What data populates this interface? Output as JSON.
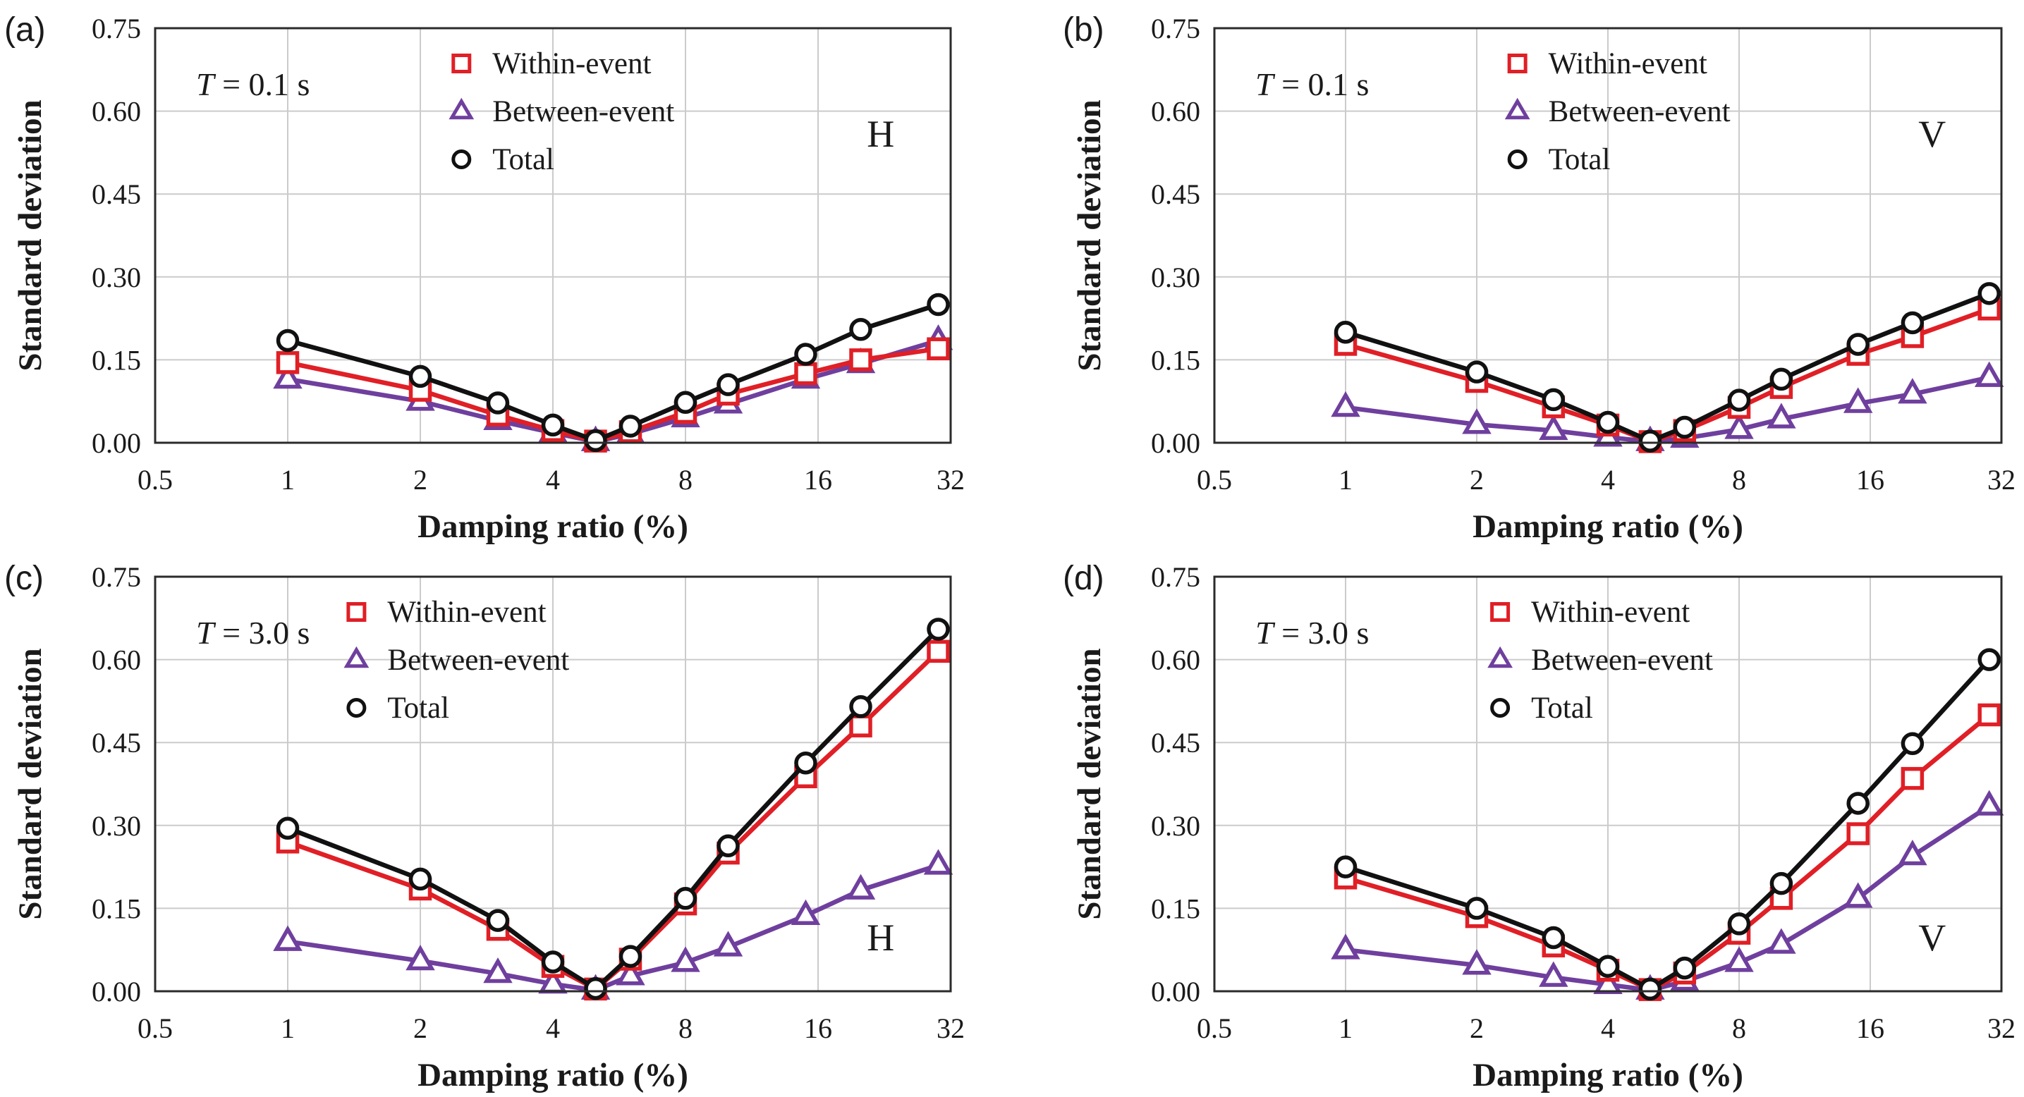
{
  "figure": {
    "background": "#ffffff",
    "grid_color": "#cbcbcb",
    "border_color": "#2b2b2b",
    "text_color": "#1a1a1a"
  },
  "chart_data": [
    {
      "type": "line",
      "panel_label": "(a)",
      "annotation": "T = 0.1 s",
      "corner_label": "H",
      "corner_position": "top-right",
      "xlabel": "Damping ratio (%)",
      "ylabel": "Standard deviation",
      "x_scale": "log2",
      "xlim": [
        0.5,
        32
      ],
      "ylim": [
        0,
        0.75
      ],
      "x_ticks": [
        0.5,
        1,
        2,
        4,
        8,
        16,
        32
      ],
      "y_ticks": [
        0,
        0.15,
        0.3,
        0.45,
        0.6,
        0.75
      ],
      "grid": true,
      "legend_position": "inside-top",
      "legend_x_frac": 0.385,
      "x": [
        1,
        2,
        3,
        4,
        5,
        6,
        8,
        10,
        15,
        20,
        30
      ],
      "series": [
        {
          "name": "Within-event",
          "marker": "square",
          "color": "#e01f26",
          "values": [
            0.145,
            0.095,
            0.05,
            0.022,
            0.003,
            0.02,
            0.055,
            0.088,
            0.125,
            0.15,
            0.17
          ]
        },
        {
          "name": "Between-event",
          "marker": "triangle",
          "color": "#6f3f9e",
          "values": [
            0.115,
            0.075,
            0.04,
            0.018,
            0.002,
            0.016,
            0.045,
            0.07,
            0.115,
            0.143,
            0.185
          ]
        },
        {
          "name": "Total",
          "marker": "circle",
          "color": "#111111",
          "values": [
            0.185,
            0.12,
            0.072,
            0.032,
            0.004,
            0.03,
            0.073,
            0.105,
            0.16,
            0.205,
            0.25
          ]
        }
      ]
    },
    {
      "type": "line",
      "panel_label": "(b)",
      "annotation": "T = 0.1 s",
      "corner_label": "V",
      "corner_position": "top-right",
      "xlabel": "Damping ratio (%)",
      "ylabel": "Standard deviation",
      "x_scale": "log2",
      "xlim": [
        0.5,
        32
      ],
      "ylim": [
        0,
        0.75
      ],
      "x_ticks": [
        0.5,
        1,
        2,
        4,
        8,
        16,
        32
      ],
      "y_ticks": [
        0,
        0.15,
        0.3,
        0.45,
        0.6,
        0.75
      ],
      "grid": true,
      "legend_position": "inside-top",
      "legend_x_frac": 0.385,
      "x": [
        1,
        2,
        3,
        4,
        5,
        6,
        8,
        10,
        15,
        20,
        30
      ],
      "series": [
        {
          "name": "Within-event",
          "marker": "square",
          "color": "#e01f26",
          "values": [
            0.178,
            0.111,
            0.065,
            0.032,
            0.002,
            0.022,
            0.064,
            0.1,
            0.16,
            0.192,
            0.242
          ]
        },
        {
          "name": "Between-event",
          "marker": "triangle",
          "color": "#6f3f9e",
          "values": [
            0.064,
            0.033,
            0.022,
            0.01,
            0.002,
            0.008,
            0.024,
            0.043,
            0.071,
            0.088,
            0.118
          ]
        },
        {
          "name": "Total",
          "marker": "circle",
          "color": "#111111",
          "values": [
            0.2,
            0.128,
            0.078,
            0.037,
            0.003,
            0.028,
            0.077,
            0.115,
            0.178,
            0.217,
            0.27
          ]
        }
      ]
    },
    {
      "type": "line",
      "panel_label": "(c)",
      "annotation": "T = 3.0 s",
      "corner_label": "H",
      "corner_position": "bottom-right",
      "xlabel": "Damping ratio (%)",
      "ylabel": "Standard deviation",
      "x_scale": "log2",
      "xlim": [
        0.5,
        32
      ],
      "ylim": [
        0,
        0.75
      ],
      "x_ticks": [
        0.5,
        1,
        2,
        4,
        8,
        16,
        32
      ],
      "y_ticks": [
        0,
        0.15,
        0.3,
        0.45,
        0.6,
        0.75
      ],
      "grid": true,
      "legend_position": "inside-top",
      "legend_x_frac": 0.253,
      "x": [
        1,
        2,
        3,
        4,
        5,
        6,
        8,
        10,
        15,
        20,
        30
      ],
      "series": [
        {
          "name": "Within-event",
          "marker": "square",
          "color": "#e01f26",
          "values": [
            0.27,
            0.185,
            0.112,
            0.045,
            0.004,
            0.058,
            0.158,
            0.25,
            0.388,
            0.48,
            0.615
          ]
        },
        {
          "name": "Between-event",
          "marker": "triangle",
          "color": "#6f3f9e",
          "values": [
            0.09,
            0.055,
            0.032,
            0.013,
            0.002,
            0.028,
            0.052,
            0.08,
            0.137,
            0.183,
            0.228
          ]
        },
        {
          "name": "Total",
          "marker": "circle",
          "color": "#111111",
          "values": [
            0.295,
            0.203,
            0.128,
            0.053,
            0.005,
            0.063,
            0.168,
            0.263,
            0.413,
            0.515,
            0.655
          ]
        }
      ]
    },
    {
      "type": "line",
      "panel_label": "(d)",
      "annotation": "T = 3.0 s",
      "corner_label": "V",
      "corner_position": "bottom-right",
      "xlabel": "Damping ratio (%)",
      "ylabel": "Standard deviation",
      "x_scale": "log2",
      "xlim": [
        0.5,
        32
      ],
      "ylim": [
        0,
        0.75
      ],
      "x_ticks": [
        0.5,
        1,
        2,
        4,
        8,
        16,
        32
      ],
      "y_ticks": [
        0,
        0.15,
        0.3,
        0.45,
        0.6,
        0.75
      ],
      "grid": true,
      "legend_position": "inside-top",
      "legend_x_frac": 0.363,
      "x": [
        1,
        2,
        3,
        4,
        5,
        6,
        8,
        10,
        15,
        20,
        30
      ],
      "series": [
        {
          "name": "Within-event",
          "marker": "square",
          "color": "#e01f26",
          "values": [
            0.205,
            0.135,
            0.082,
            0.038,
            0.003,
            0.033,
            0.105,
            0.168,
            0.285,
            0.385,
            0.5
          ]
        },
        {
          "name": "Between-event",
          "marker": "triangle",
          "color": "#6f3f9e",
          "values": [
            0.075,
            0.047,
            0.025,
            0.012,
            0.002,
            0.018,
            0.052,
            0.085,
            0.168,
            0.245,
            0.335
          ]
        },
        {
          "name": "Total",
          "marker": "circle",
          "color": "#111111",
          "values": [
            0.225,
            0.15,
            0.097,
            0.045,
            0.004,
            0.042,
            0.122,
            0.195,
            0.34,
            0.448,
            0.6
          ]
        }
      ]
    }
  ]
}
